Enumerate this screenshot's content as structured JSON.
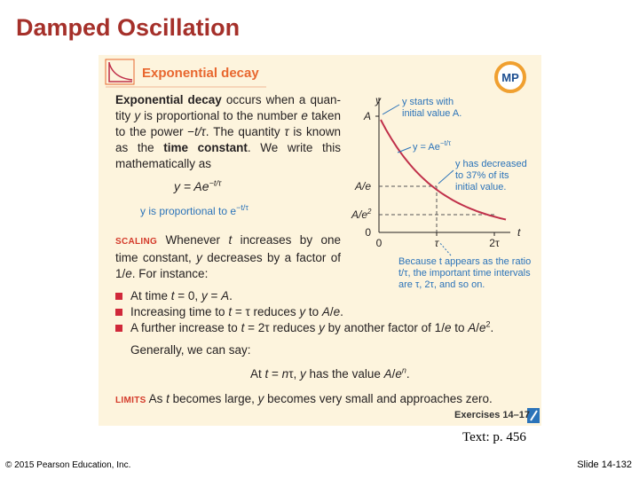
{
  "slide": {
    "title": "Damped Oscillation",
    "source": "Text: p. 456",
    "copyright": "© 2015 Pearson Education, Inc.",
    "slide_number": "Slide 14-132"
  },
  "box": {
    "header": "Exponential decay",
    "badge": "MP",
    "intro": [
      "Exponential decay",
      " occurs when a quan­tity ",
      "y",
      " is proportional to the number ",
      "e",
      " taken to the power −",
      "t/τ",
      ". The quantity ",
      "τ",
      " is known as the ",
      "time constant",
      ". We write this mathematically as"
    ],
    "formula": [
      "y = Ae",
      "−t/τ"
    ],
    "formula_note": [
      "y is proportional to e",
      "−t/τ"
    ],
    "scaling": {
      "label": "SCALING",
      "text": [
        " Whenever ",
        "t",
        " increases by one time constant, ",
        "y",
        " decreases by a factor of 1/",
        "e",
        ". For instance:"
      ]
    },
    "bullets": [
      [
        "At time ",
        "t",
        " = 0, ",
        "y",
        " = ",
        "A",
        "."
      ],
      [
        "Increasing time to ",
        "t",
        " = τ reduces ",
        "y",
        " to ",
        "A",
        "/",
        "e",
        "."
      ],
      [
        "A further increase to ",
        "t",
        " = 2τ reduces ",
        "y",
        " by another factor of 1/",
        "e",
        " to ",
        "A",
        "/",
        "e",
        "2",
        "."
      ]
    ],
    "general": "Generally, we can say:",
    "general_rule": [
      "At ",
      "t",
      " = ",
      "n",
      "τ, ",
      "y",
      " has the value ",
      "A",
      "/",
      "e",
      "n",
      "."
    ],
    "limits": {
      "label": "LIMITS",
      "text": [
        " As ",
        "t",
        " becomes large, ",
        "y",
        " becomes very small and approaches zero."
      ]
    },
    "exercises": "Exercises 14–17"
  },
  "graph": {
    "axis_y": "y",
    "axis_x": "t",
    "level_a": "A",
    "level_a_e": "A/e",
    "level_a_e2": [
      "A/e",
      "2"
    ],
    "zero_y": "0",
    "zero_x": "0",
    "tau": "τ",
    "two_tau": "2τ",
    "start_note": [
      "y starts with",
      "initial value A."
    ],
    "curve_label": [
      "y = Ae",
      "−t/τ"
    ],
    "decrease_note": [
      "y has decreased",
      "to 37% of its",
      "initial value."
    ],
    "ratio_note": [
      "Because t appears as the ratio",
      "t/τ, the important time intervals",
      "are τ, 2τ, and so on."
    ]
  }
}
